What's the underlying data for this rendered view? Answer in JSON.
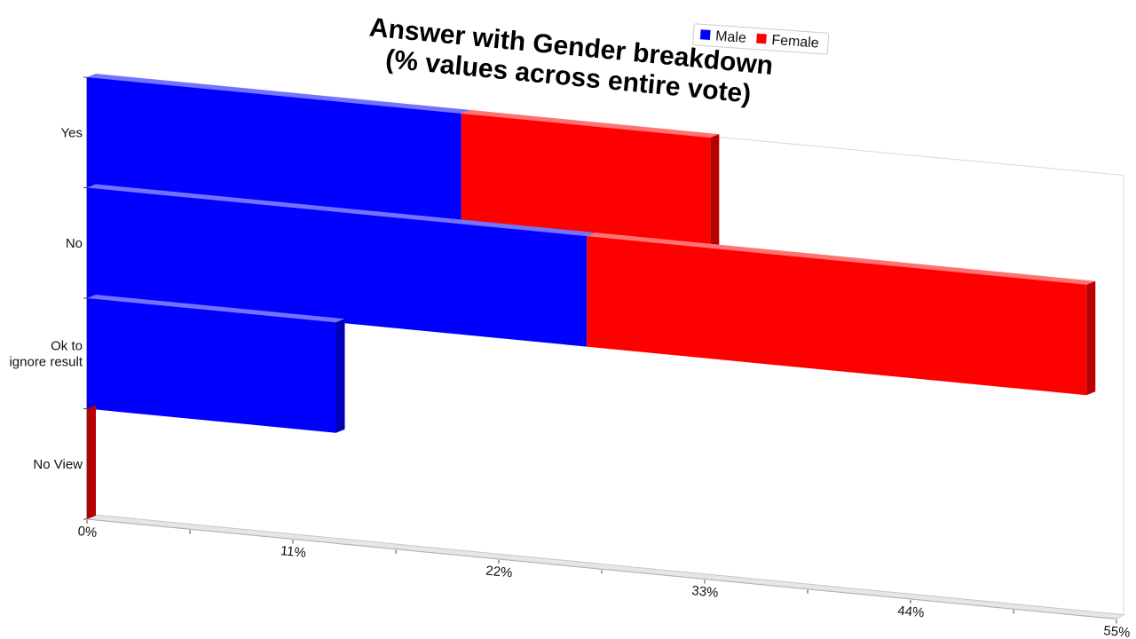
{
  "chart_data": {
    "type": "bar",
    "orientation": "horizontal",
    "stacked": true,
    "three_d": true,
    "title": "Answer with Gender breakdown\n(% values across entire vote)",
    "categories": [
      "Yes",
      "No",
      "Ok to\nignore result",
      "No View"
    ],
    "series": [
      {
        "name": "Male",
        "color": "#0000ff",
        "values": [
          20,
          26.7,
          13.3,
          0
        ]
      },
      {
        "name": "Female",
        "color": "#ff0000",
        "values": [
          13.3,
          26.7,
          0,
          0
        ]
      }
    ],
    "x_ticks": [
      "0%",
      "11%",
      "22%",
      "33%",
      "44%",
      "55%"
    ],
    "xlim": [
      0,
      55
    ],
    "legend_position": "top-right",
    "grid": false
  }
}
